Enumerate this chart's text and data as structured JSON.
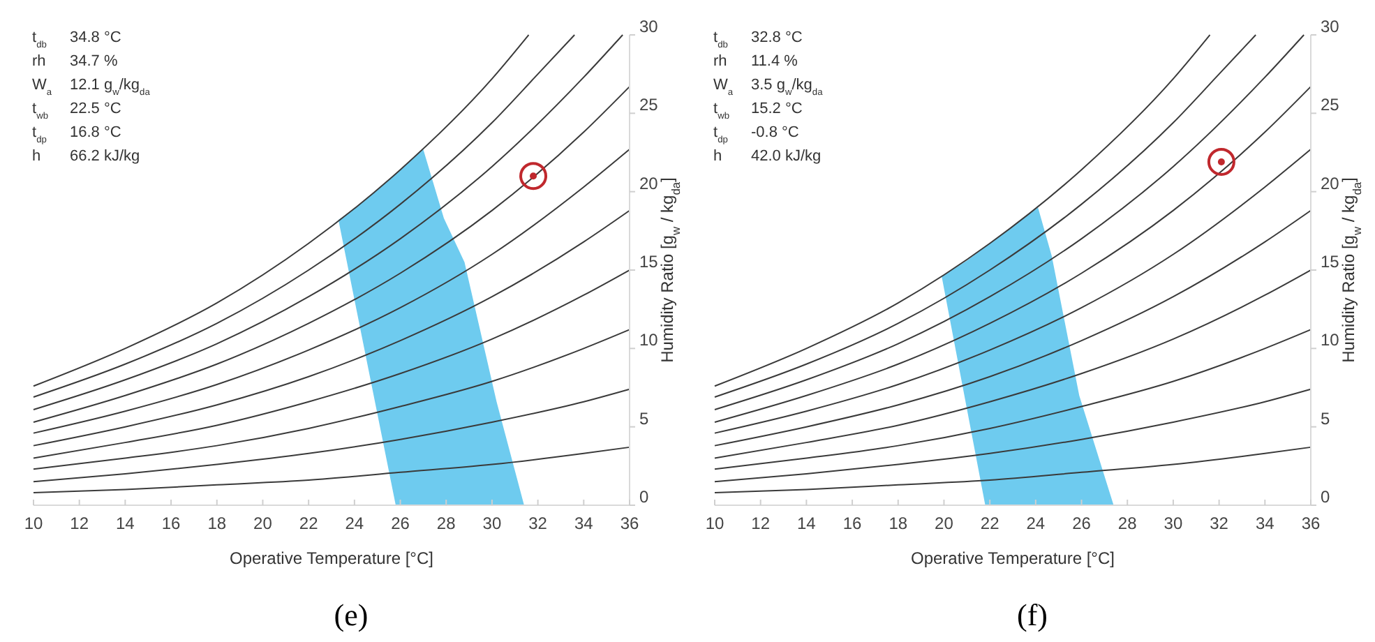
{
  "chart_data": [
    {
      "type": "line",
      "title": "(e)",
      "xlabel": "Operative Temperature [°C]",
      "ylabel": "Humidity Ratio [g$_{w}$ / kg$_{da}$]",
      "xlim": [
        10,
        36
      ],
      "xticks": [
        10,
        12,
        14,
        16,
        18,
        20,
        22,
        24,
        26,
        28,
        30,
        32,
        34,
        36
      ],
      "ylim": [
        0,
        30
      ],
      "yticks": [
        0,
        5,
        10,
        15,
        20,
        25,
        30
      ],
      "grid": false,
      "annotations": [
        "t$_{db}$ 34.8 °C",
        "rh 34.7 %",
        "W$_{a}$ 12.1 g$_{w}$/kg$_{da}$",
        "t$_{wb}$ 22.5 °C",
        "t$_{dp}$ 16.8 °C",
        "h 66.2 kJ/kg"
      ],
      "series": [
        {
          "type": "area",
          "color": "#6ecbef",
          "x": [
            25.8,
            23.3,
            24,
            25,
            26,
            27.0,
            27.9,
            28.8,
            30.2,
            31.4
          ],
          "values": [
            0,
            18.2,
            18.9,
            20.1,
            21.4,
            22.7,
            18.3,
            15.5,
            6.6,
            0
          ]
        },
        {
          "color": "#3a3a3a",
          "x": [
            10,
            14,
            18,
            22,
            26,
            30,
            34,
            36
          ],
          "values": [
            0.8,
            1.0,
            1.3,
            1.6,
            2.1,
            2.6,
            3.3,
            3.7
          ]
        },
        {
          "color": "#3a3a3a",
          "x": [
            10,
            14,
            18,
            22,
            26,
            30,
            34,
            36
          ],
          "values": [
            1.5,
            2.0,
            2.6,
            3.3,
            4.2,
            5.3,
            6.6,
            7.4
          ]
        },
        {
          "color": "#3a3a3a",
          "x": [
            10,
            14,
            18,
            22,
            26,
            30,
            34,
            36
          ],
          "values": [
            2.3,
            3.0,
            3.8,
            4.9,
            6.3,
            7.9,
            10.0,
            11.2
          ]
        },
        {
          "color": "#3a3a3a",
          "x": [
            10,
            14,
            18,
            22,
            26,
            30,
            34,
            36
          ],
          "values": [
            3.0,
            4.0,
            5.1,
            6.6,
            8.4,
            10.6,
            13.4,
            15.0
          ]
        },
        {
          "color": "#3a3a3a",
          "x": [
            10,
            14,
            18,
            22,
            26,
            30,
            34,
            36
          ],
          "values": [
            3.8,
            5.0,
            6.4,
            8.2,
            10.5,
            13.3,
            16.8,
            18.8
          ]
        },
        {
          "color": "#3a3a3a",
          "x": [
            10,
            14,
            18,
            22,
            26,
            30,
            34,
            36
          ],
          "values": [
            4.6,
            6.0,
            7.7,
            9.9,
            12.6,
            16.0,
            20.3,
            22.7
          ]
        },
        {
          "color": "#3a3a3a",
          "x": [
            10,
            14,
            18,
            22,
            26,
            30,
            34,
            36
          ],
          "values": [
            5.3,
            7.0,
            9.0,
            11.6,
            14.8,
            18.8,
            23.8,
            26.7
          ]
        },
        {
          "color": "#3a3a3a",
          "x": [
            10,
            14,
            18,
            22,
            26,
            30,
            34,
            35.7
          ],
          "values": [
            6.1,
            8.0,
            10.3,
            13.3,
            17.0,
            21.6,
            27.3,
            30
          ]
        },
        {
          "color": "#3a3a3a",
          "x": [
            10,
            14,
            18,
            22,
            26,
            30,
            32,
            33.6
          ],
          "values": [
            6.9,
            9.0,
            11.6,
            15.0,
            19.2,
            24.4,
            27.5,
            30
          ]
        },
        {
          "color": "#3a3a3a",
          "x": [
            10,
            14,
            18,
            22,
            26,
            30,
            31.6
          ],
          "values": [
            7.6,
            10.0,
            12.9,
            16.7,
            21.4,
            27.2,
            30
          ]
        },
        {
          "type": "scatter",
          "color": "#c0282d",
          "marker": "circle",
          "x": [
            31.8
          ],
          "values": [
            21.0
          ]
        }
      ]
    },
    {
      "type": "line",
      "title": "(f)",
      "xlabel": "Operative Temperature [°C]",
      "ylabel": "Humidity Ratio [g$_{w}$ / kg$_{da}$]",
      "xlim": [
        10,
        36
      ],
      "xticks": [
        10,
        12,
        14,
        16,
        18,
        20,
        22,
        24,
        26,
        28,
        30,
        32,
        34,
        36
      ],
      "ylim": [
        0,
        30
      ],
      "yticks": [
        0,
        5,
        10,
        15,
        20,
        25,
        30
      ],
      "grid": false,
      "annotations": [
        "t$_{db}$ 32.8 °C",
        "rh 11.4 %",
        "W$_{a}$ 3.5 g$_{w}$/kg$_{da}$",
        "t$_{wb}$ 15.2 °C",
        "t$_{dp}$ -0.8 °C",
        "h 42.0 kJ/kg"
      ],
      "series": [
        {
          "type": "area",
          "color": "#6ecbef",
          "x": [
            21.8,
            19.9,
            21,
            22,
            23,
            24.1,
            24.7,
            25.9,
            27.4
          ],
          "values": [
            0,
            14.6,
            15.6,
            16.7,
            17.8,
            19.0,
            15.9,
            7.0,
            0
          ]
        },
        {
          "color": "#3a3a3a",
          "x": [
            10,
            14,
            18,
            22,
            26,
            30,
            34,
            36
          ],
          "values": [
            0.8,
            1.0,
            1.3,
            1.6,
            2.1,
            2.6,
            3.3,
            3.7
          ]
        },
        {
          "color": "#3a3a3a",
          "x": [
            10,
            14,
            18,
            22,
            26,
            30,
            34,
            36
          ],
          "values": [
            1.5,
            2.0,
            2.6,
            3.3,
            4.2,
            5.3,
            6.6,
            7.4
          ]
        },
        {
          "color": "#3a3a3a",
          "x": [
            10,
            14,
            18,
            22,
            26,
            30,
            34,
            36
          ],
          "values": [
            2.3,
            3.0,
            3.8,
            4.9,
            6.3,
            7.9,
            10.0,
            11.2
          ]
        },
        {
          "color": "#3a3a3a",
          "x": [
            10,
            14,
            18,
            22,
            26,
            30,
            34,
            36
          ],
          "values": [
            3.0,
            4.0,
            5.1,
            6.6,
            8.4,
            10.6,
            13.4,
            15.0
          ]
        },
        {
          "color": "#3a3a3a",
          "x": [
            10,
            14,
            18,
            22,
            26,
            30,
            34,
            36
          ],
          "values": [
            3.8,
            5.0,
            6.4,
            8.2,
            10.5,
            13.3,
            16.8,
            18.8
          ]
        },
        {
          "color": "#3a3a3a",
          "x": [
            10,
            14,
            18,
            22,
            26,
            30,
            34,
            36
          ],
          "values": [
            4.6,
            6.0,
            7.7,
            9.9,
            12.6,
            16.0,
            20.3,
            22.7
          ]
        },
        {
          "color": "#3a3a3a",
          "x": [
            10,
            14,
            18,
            22,
            26,
            30,
            34,
            36
          ],
          "values": [
            5.3,
            7.0,
            9.0,
            11.6,
            14.8,
            18.8,
            23.8,
            26.7
          ]
        },
        {
          "color": "#3a3a3a",
          "x": [
            10,
            14,
            18,
            22,
            26,
            30,
            34,
            35.7
          ],
          "values": [
            6.1,
            8.0,
            10.3,
            13.3,
            17.0,
            21.6,
            27.3,
            30
          ]
        },
        {
          "color": "#3a3a3a",
          "x": [
            10,
            14,
            18,
            22,
            26,
            30,
            32,
            33.6
          ],
          "values": [
            6.9,
            9.0,
            11.6,
            15.0,
            19.2,
            24.4,
            27.5,
            30
          ]
        },
        {
          "color": "#3a3a3a",
          "x": [
            10,
            14,
            18,
            22,
            26,
            30,
            31.6
          ],
          "values": [
            7.6,
            10.0,
            12.9,
            16.7,
            21.4,
            27.2,
            30
          ]
        },
        {
          "type": "scatter",
          "color": "#c0282d",
          "marker": "circle",
          "x": [
            32.1
          ],
          "values": [
            21.9
          ]
        }
      ]
    }
  ]
}
